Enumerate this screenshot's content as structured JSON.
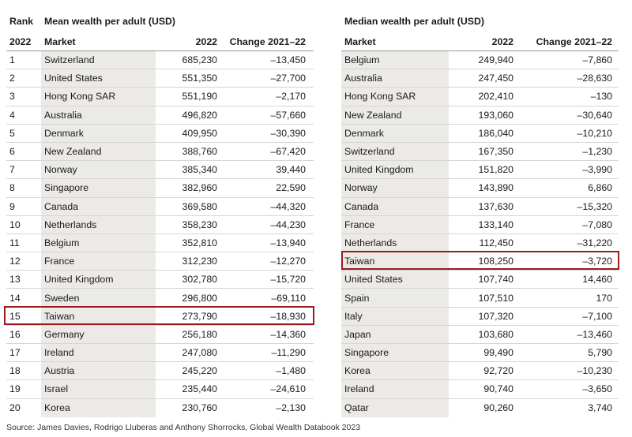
{
  "left_table": {
    "header_rank_top": "Rank",
    "header_title": "Mean wealth per adult (USD)",
    "header_rank_bottom": "2022",
    "header_market": "Market",
    "header_value": "2022",
    "header_change": "Change 2021–22",
    "rows": [
      {
        "rank": "1",
        "market": "Switzerland",
        "value": "685,230",
        "change": "–13,450"
      },
      {
        "rank": "2",
        "market": "United States",
        "value": "551,350",
        "change": "–27,700"
      },
      {
        "rank": "3",
        "market": "Hong Kong SAR",
        "value": "551,190",
        "change": "–2,170"
      },
      {
        "rank": "4",
        "market": "Australia",
        "value": "496,820",
        "change": "–57,660"
      },
      {
        "rank": "5",
        "market": "Denmark",
        "value": "409,950",
        "change": "–30,390"
      },
      {
        "rank": "6",
        "market": "New Zealand",
        "value": "388,760",
        "change": "–67,420"
      },
      {
        "rank": "7",
        "market": "Norway",
        "value": "385,340",
        "change": "39,440"
      },
      {
        "rank": "8",
        "market": "Singapore",
        "value": "382,960",
        "change": "22,590"
      },
      {
        "rank": "9",
        "market": "Canada",
        "value": "369,580",
        "change": "–44,320"
      },
      {
        "rank": "10",
        "market": "Netherlands",
        "value": "358,230",
        "change": "–44,230"
      },
      {
        "rank": "11",
        "market": "Belgium",
        "value": "352,810",
        "change": "–13,940"
      },
      {
        "rank": "12",
        "market": "France",
        "value": "312,230",
        "change": "–12,270"
      },
      {
        "rank": "13",
        "market": "United Kingdom",
        "value": "302,780",
        "change": "–15,720"
      },
      {
        "rank": "14",
        "market": "Sweden",
        "value": "296,800",
        "change": "–69,110"
      },
      {
        "rank": "15",
        "market": "Taiwan",
        "value": "273,790",
        "change": "–18,930"
      },
      {
        "rank": "16",
        "market": "Germany",
        "value": "256,180",
        "change": "–14,360"
      },
      {
        "rank": "17",
        "market": "Ireland",
        "value": "247,080",
        "change": "–11,290"
      },
      {
        "rank": "18",
        "market": "Austria",
        "value": "245,220",
        "change": "–1,480"
      },
      {
        "rank": "19",
        "market": "Israel",
        "value": "235,440",
        "change": "–24,610"
      },
      {
        "rank": "20",
        "market": "Korea",
        "value": "230,760",
        "change": "–2,130"
      }
    ]
  },
  "right_table": {
    "header_title": "Median wealth per adult (USD)",
    "header_market": "Market",
    "header_value": "2022",
    "header_change": "Change 2021–22",
    "rows": [
      {
        "market": "Belgium",
        "value": "249,940",
        "change": "–7,860"
      },
      {
        "market": "Australia",
        "value": "247,450",
        "change": "–28,630"
      },
      {
        "market": "Hong Kong SAR",
        "value": "202,410",
        "change": "–130"
      },
      {
        "market": "New Zealand",
        "value": "193,060",
        "change": "–30,640"
      },
      {
        "market": "Denmark",
        "value": "186,040",
        "change": "–10,210"
      },
      {
        "market": "Switzerland",
        "value": "167,350",
        "change": "–1,230"
      },
      {
        "market": "United Kingdom",
        "value": "151,820",
        "change": "–3,990"
      },
      {
        "market": "Norway",
        "value": "143,890",
        "change": "6,860"
      },
      {
        "market": "Canada",
        "value": "137,630",
        "change": "–15,320"
      },
      {
        "market": "France",
        "value": "133,140",
        "change": "–7,080"
      },
      {
        "market": "Netherlands",
        "value": "112,450",
        "change": "–31,220"
      },
      {
        "market": "Taiwan",
        "value": "108,250",
        "change": "–3,720"
      },
      {
        "market": "United States",
        "value": "107,740",
        "change": "14,460"
      },
      {
        "market": "Spain",
        "value": "107,510",
        "change": "170"
      },
      {
        "market": "Italy",
        "value": "107,320",
        "change": "–7,100"
      },
      {
        "market": "Japan",
        "value": "103,680",
        "change": "–13,460"
      },
      {
        "market": "Singapore",
        "value": "99,490",
        "change": "5,790"
      },
      {
        "market": "Korea",
        "value": "92,720",
        "change": "–10,230"
      },
      {
        "market": "Ireland",
        "value": "90,740",
        "change": "–3,650"
      },
      {
        "market": "Qatar",
        "value": "90,260",
        "change": "3,740"
      }
    ]
  },
  "highlight_color": "#9b1b1f",
  "source": "Source: James Davies, Rodrigo Lluberas and Anthony Shorrocks, Global Wealth Databook 2023"
}
